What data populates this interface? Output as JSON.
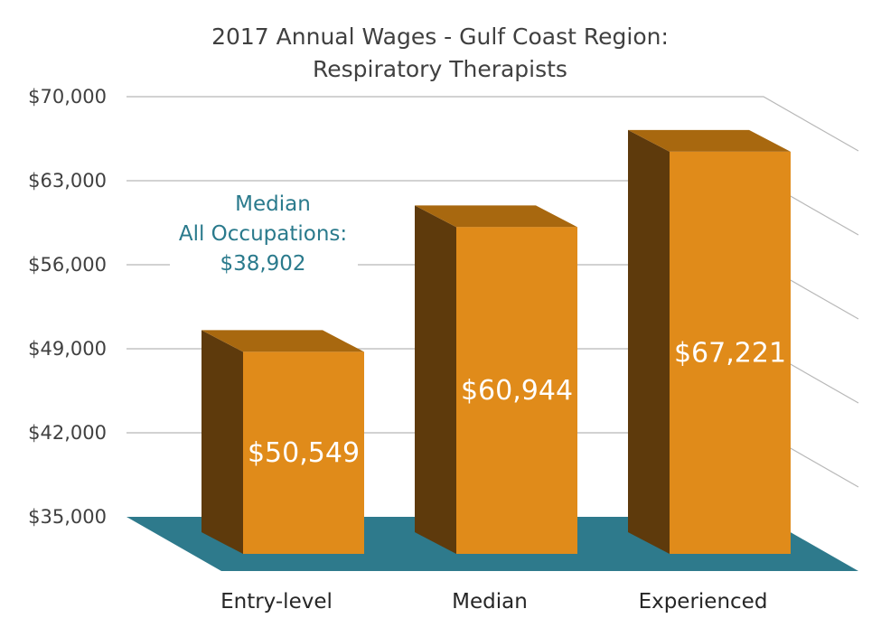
{
  "chart_data": {
    "type": "bar",
    "title": "2017 Annual Wages - Gulf Coast Region:",
    "subtitle": "Respiratory Therapists",
    "categories": [
      "Entry-level",
      "Median",
      "Experienced"
    ],
    "values": [
      50549,
      60944,
      67221
    ],
    "data_labels": [
      "$50,549",
      "$60,944",
      "$67,221"
    ],
    "ylim": [
      35000,
      70000
    ],
    "y_ticks": [
      35000,
      42000,
      49000,
      56000,
      63000,
      70000
    ],
    "y_tick_labels": [
      "$35,000",
      "$42,000",
      "$49,000",
      "$56,000",
      "$63,000",
      "$70,000"
    ],
    "grid": true,
    "style": "3d-column",
    "annotation": {
      "lines": [
        "Median",
        "All Occupations:",
        "$38,902"
      ],
      "color": "#2a7a8c"
    },
    "colors": {
      "bar_front": "#e08b1a",
      "bar_side": "#5e3a0c",
      "bar_top": "#a8680f",
      "floor": "#2e7a8c",
      "grid": "#b8b8b8",
      "text": "#404040"
    }
  }
}
